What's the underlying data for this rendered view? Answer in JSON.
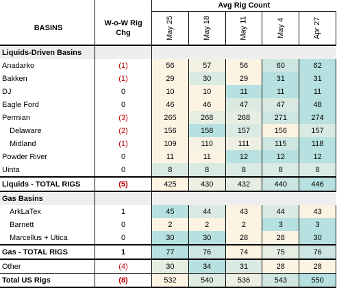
{
  "header": {
    "group_title": "Avg Rig Count",
    "basins_label": "BASINS",
    "chg_label_1": "W-o-W Rig",
    "chg_label_2": "Chg",
    "weeks": [
      "May 25",
      "May 18",
      "May 11",
      "May 4",
      "Apr 27"
    ]
  },
  "colors": {
    "low": "#fdf3e3",
    "high": "#b7e0e0",
    "negative": "#c00000"
  },
  "sections": [
    {
      "title": "Liquids-Driven Basins",
      "rows": [
        {
          "name": "Anadarko",
          "chg": "(1)",
          "neg": true,
          "values": [
            56,
            57,
            56,
            60,
            62
          ]
        },
        {
          "name": "Bakken",
          "chg": "(1)",
          "neg": true,
          "values": [
            29,
            30,
            29,
            31,
            31
          ]
        },
        {
          "name": "DJ",
          "chg": "0",
          "neg": false,
          "values": [
            10,
            10,
            11,
            11,
            11
          ]
        },
        {
          "name": "Eagle Ford",
          "chg": "0",
          "neg": false,
          "values": [
            46,
            46,
            47,
            47,
            48
          ]
        },
        {
          "name": "Permian",
          "chg": "(3)",
          "neg": true,
          "values": [
            265,
            268,
            268,
            271,
            274
          ]
        },
        {
          "name": "Delaware",
          "chg": "(2)",
          "neg": true,
          "indent": true,
          "values": [
            156,
            158,
            157,
            156,
            157
          ]
        },
        {
          "name": "Midland",
          "chg": "(1)",
          "neg": true,
          "indent": true,
          "values": [
            109,
            110,
            111,
            115,
            118
          ]
        },
        {
          "name": "Powder River",
          "chg": "0",
          "neg": false,
          "values": [
            11,
            11,
            12,
            12,
            12
          ]
        },
        {
          "name": "Uinta",
          "chg": "0",
          "neg": false,
          "values": [
            8,
            8,
            8,
            8,
            8
          ]
        }
      ],
      "total": {
        "name": "Liquids - TOTAL RIGS",
        "chg": "(5)",
        "neg": true,
        "values": [
          425,
          430,
          432,
          440,
          446
        ]
      }
    },
    {
      "title": "Gas Basins",
      "rows": [
        {
          "name": "ArkLaTex",
          "chg": "1",
          "neg": false,
          "indent": true,
          "values": [
            45,
            44,
            43,
            44,
            43
          ]
        },
        {
          "name": "Barnett",
          "chg": "0",
          "neg": false,
          "indent": true,
          "values": [
            2,
            2,
            2,
            3,
            3
          ]
        },
        {
          "name": "Marcellus + Utica",
          "chg": "0",
          "neg": false,
          "indent": true,
          "values": [
            30,
            30,
            28,
            28,
            30
          ]
        }
      ],
      "total": {
        "name": "Gas - TOTAL RIGS",
        "chg": "1",
        "neg": false,
        "values": [
          77,
          76,
          74,
          75,
          76
        ]
      }
    }
  ],
  "other": {
    "name": "Other",
    "chg": "(4)",
    "neg": true,
    "values": [
      30,
      34,
      31,
      28,
      28
    ]
  },
  "grand_total": {
    "name": "Total US Rigs",
    "chg": "(8)",
    "neg": true,
    "values": [
      532,
      540,
      536,
      543,
      550
    ]
  }
}
